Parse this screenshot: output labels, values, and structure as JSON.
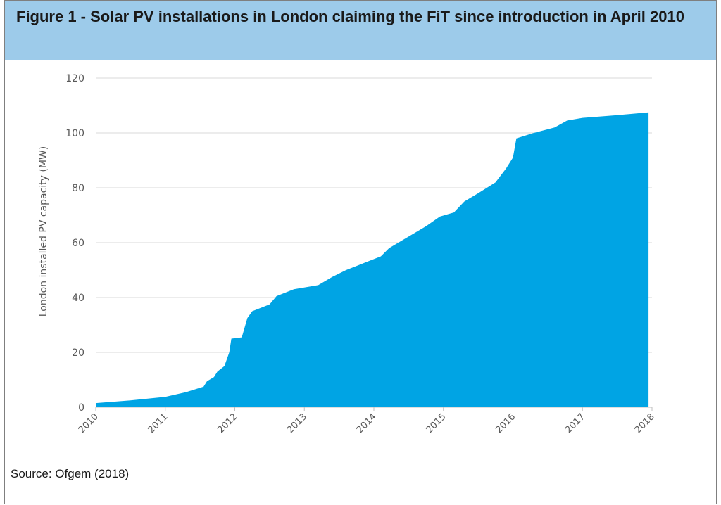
{
  "figure": {
    "title": "Figure 1 - Solar PV installations in London claiming the FiT since introduction in April 2010",
    "source": "Source: Ofgem (2018)"
  },
  "colors": {
    "header_bg": "#9dcbea",
    "area_fill": "#00a4e4",
    "grid": "#d9d9d9",
    "axis_text": "#595959"
  },
  "chart_data": {
    "type": "area",
    "title": "Figure 1 - Solar PV installations in London claiming the FiT since introduction in April 2010",
    "xlabel": "",
    "ylabel": "London installed PV capacity (MW)",
    "xlim": [
      2010,
      2018
    ],
    "ylim": [
      0,
      120
    ],
    "yticks": [
      0,
      20,
      40,
      60,
      80,
      100,
      120
    ],
    "xticks": [
      "2010",
      "2011",
      "2012",
      "2013",
      "2014",
      "2015",
      "2016",
      "2017",
      "2018"
    ],
    "grid": true,
    "series": [
      {
        "values": [
          [
            2010.0,
            1.5
          ],
          [
            2010.5,
            2.5
          ],
          [
            2011.0,
            3.8
          ],
          [
            2011.3,
            5.5
          ],
          [
            2011.55,
            7.5
          ],
          [
            2011.6,
            9.5
          ],
          [
            2011.7,
            11.0
          ],
          [
            2011.75,
            13.0
          ],
          [
            2011.85,
            15.0
          ],
          [
            2011.92,
            20.0
          ],
          [
            2011.95,
            25.0
          ],
          [
            2012.1,
            25.5
          ],
          [
            2012.18,
            32.5
          ],
          [
            2012.25,
            35.0
          ],
          [
            2012.5,
            37.5
          ],
          [
            2012.6,
            40.5
          ],
          [
            2012.85,
            43.0
          ],
          [
            2013.2,
            44.5
          ],
          [
            2013.4,
            47.5
          ],
          [
            2013.6,
            50.0
          ],
          [
            2013.9,
            53.0
          ],
          [
            2014.1,
            55.0
          ],
          [
            2014.22,
            58.0
          ],
          [
            2014.45,
            61.5
          ],
          [
            2014.75,
            66.0
          ],
          [
            2014.95,
            69.5
          ],
          [
            2015.15,
            71.0
          ],
          [
            2015.3,
            75.0
          ],
          [
            2015.5,
            78.0
          ],
          [
            2015.75,
            82.0
          ],
          [
            2015.9,
            87.0
          ],
          [
            2016.0,
            91.0
          ],
          [
            2016.05,
            98.0
          ],
          [
            2016.3,
            100.0
          ],
          [
            2016.6,
            102.0
          ],
          [
            2016.78,
            104.5
          ],
          [
            2017.0,
            105.5
          ],
          [
            2017.5,
            106.5
          ],
          [
            2017.95,
            107.5
          ]
        ]
      }
    ]
  }
}
